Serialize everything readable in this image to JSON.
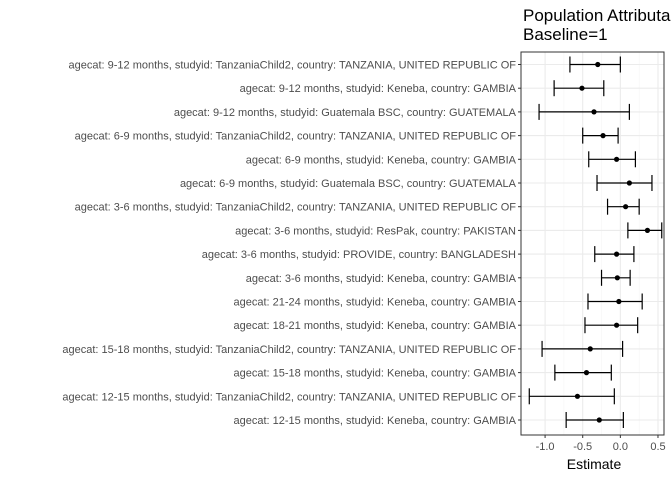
{
  "chart_data": {
    "type": "forest",
    "title": "Population Attributable Fraction (PAF) of stunting by...",
    "subtitle": "Baseline=1",
    "title_visible": "Population Attributa",
    "xlabel": "Estimate",
    "ylabel": "",
    "xlim": [
      -1.32,
      0.58
    ],
    "xticks": [
      -1.0,
      -0.5,
      0.0,
      0.5
    ],
    "xtick_labels": [
      "-1.0",
      "-0.5",
      "0.0",
      "0.5"
    ],
    "grid": true,
    "legend": "none",
    "colors": {
      "panel_bg": "#ffffff",
      "grid_major": "#ebebeb",
      "grid_minor": "#f5f5f5",
      "border": "#333333",
      "mark": "#000000"
    },
    "rows": [
      {
        "label": "agecat: 9-12 months, studyid: TanzaniaChild2, country: TANZANIA, UNITED REPUBLIC OF",
        "estimate": -0.3,
        "lower": -0.67,
        "upper": 0.0
      },
      {
        "label": "agecat: 9-12 months, studyid: Keneba, country: GAMBIA",
        "estimate": -0.51,
        "lower": -0.88,
        "upper": -0.22
      },
      {
        "label": "agecat: 9-12 months, studyid: Guatemala BSC, country: GUATEMALA",
        "estimate": -0.35,
        "lower": -1.08,
        "upper": 0.12
      },
      {
        "label": "agecat: 6-9 months, studyid: TanzaniaChild2, country: TANZANIA, UNITED REPUBLIC OF",
        "estimate": -0.23,
        "lower": -0.5,
        "upper": -0.03
      },
      {
        "label": "agecat: 6-9 months, studyid: Keneba, country: GAMBIA",
        "estimate": -0.05,
        "lower": -0.42,
        "upper": 0.2
      },
      {
        "label": "agecat: 6-9 months, studyid: Guatemala BSC, country: GUATEMALA",
        "estimate": 0.12,
        "lower": -0.31,
        "upper": 0.42
      },
      {
        "label": "agecat: 3-6 months, studyid: TanzaniaChild2, country: TANZANIA, UNITED REPUBLIC OF",
        "estimate": 0.07,
        "lower": -0.17,
        "upper": 0.25
      },
      {
        "label": "agecat: 3-6 months, studyid: ResPak, country: PAKISTAN",
        "estimate": 0.36,
        "lower": 0.1,
        "upper": 0.55
      },
      {
        "label": "agecat: 3-6 months, studyid: PROVIDE, country: BANGLADESH",
        "estimate": -0.05,
        "lower": -0.34,
        "upper": 0.18
      },
      {
        "label": "agecat: 3-6 months, studyid: Keneba, country: GAMBIA",
        "estimate": -0.04,
        "lower": -0.25,
        "upper": 0.13
      },
      {
        "label": "agecat: 21-24 months, studyid: Keneba, country: GAMBIA",
        "estimate": -0.02,
        "lower": -0.43,
        "upper": 0.29
      },
      {
        "label": "agecat: 18-21 months, studyid: Keneba, country: GAMBIA",
        "estimate": -0.05,
        "lower": -0.47,
        "upper": 0.23
      },
      {
        "label": "agecat: 15-18 months, studyid: TanzaniaChild2, country: TANZANIA, UNITED REPUBLIC OF",
        "estimate": -0.4,
        "lower": -1.04,
        "upper": 0.03
      },
      {
        "label": "agecat: 15-18 months, studyid: Keneba, country: GAMBIA",
        "estimate": -0.45,
        "lower": -0.87,
        "upper": -0.12
      },
      {
        "label": "agecat: 12-15 months, studyid: TanzaniaChild2, country: TANZANIA, UNITED REPUBLIC OF",
        "estimate": -0.57,
        "lower": -1.21,
        "upper": -0.08
      },
      {
        "label": "agecat: 12-15 months, studyid: Keneba, country: GAMBIA",
        "estimate": -0.28,
        "lower": -0.72,
        "upper": 0.04
      }
    ]
  }
}
